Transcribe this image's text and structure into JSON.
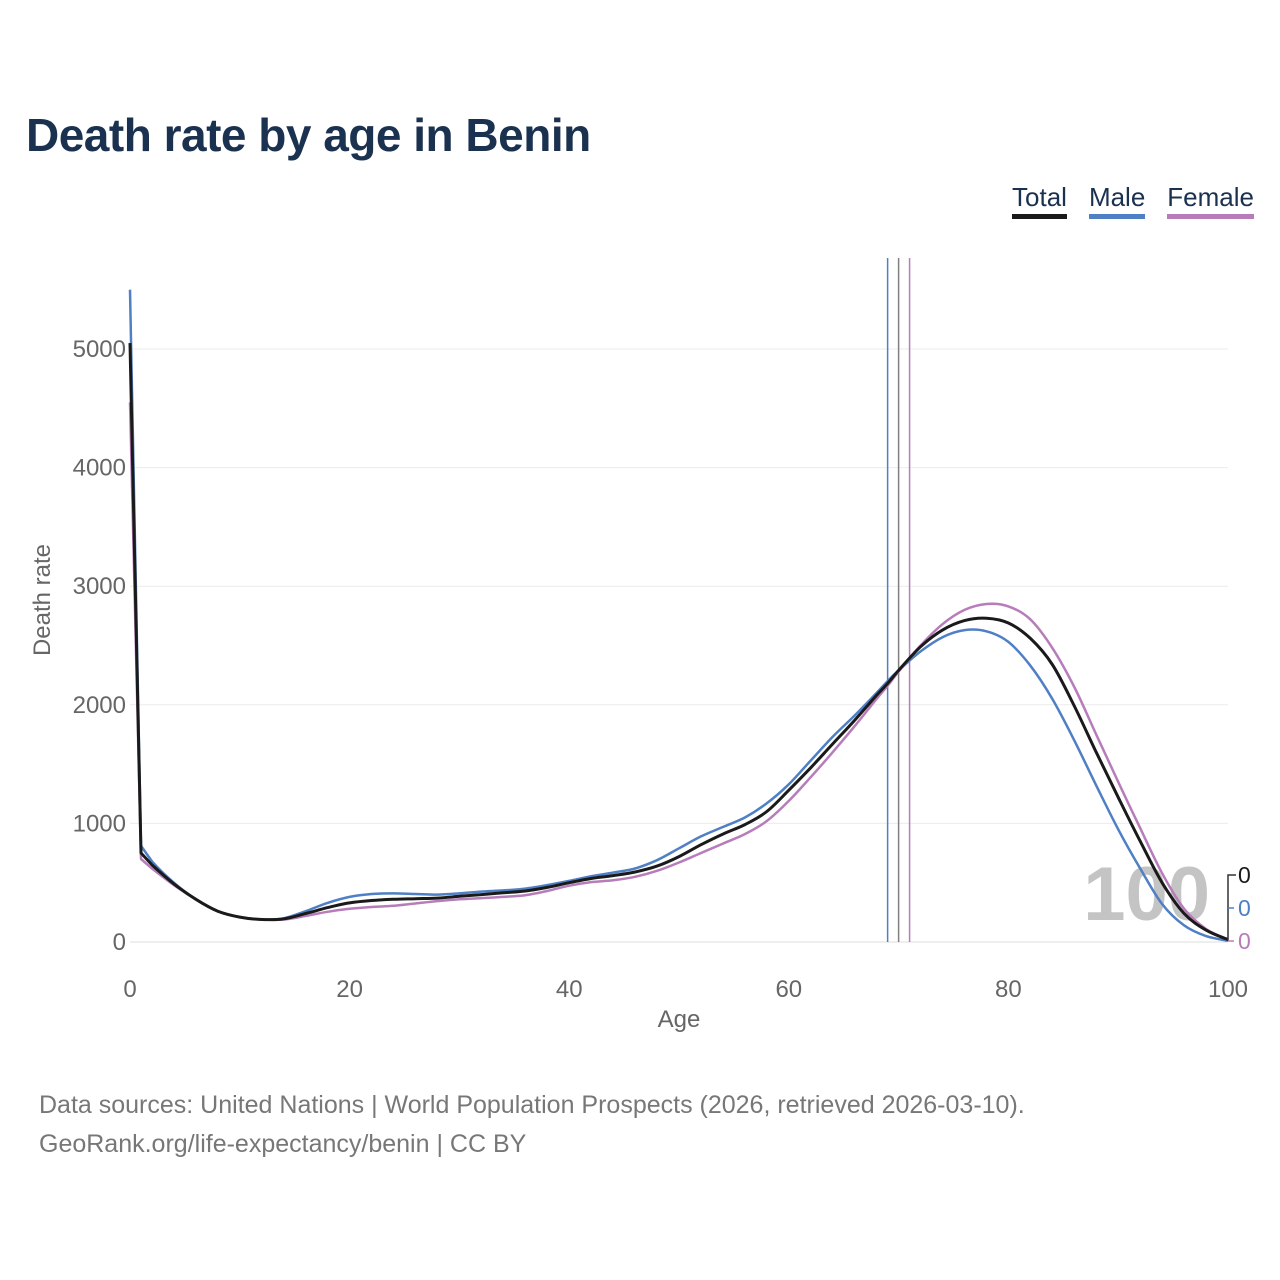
{
  "title": "Death rate by age in Benin",
  "legend": [
    {
      "label": "Total",
      "color": "#1a1a1a"
    },
    {
      "label": "Male",
      "color": "#4f7fc4"
    },
    {
      "label": "Female",
      "color": "#b77dba"
    }
  ],
  "chart_data": {
    "type": "line",
    "title": "Death rate by age in Benin",
    "xlabel": "Age",
    "ylabel": "Death rate",
    "xlim": [
      0,
      100
    ],
    "ylim": [
      0,
      5500
    ],
    "x_ticks": [
      0,
      20,
      40,
      60,
      80,
      100
    ],
    "y_ticks": [
      0,
      1000,
      2000,
      3000,
      4000,
      5000
    ],
    "grid": true,
    "x": [
      0,
      1,
      2,
      4,
      6,
      8,
      10,
      12,
      14,
      16,
      18,
      20,
      22,
      24,
      26,
      28,
      30,
      32,
      34,
      36,
      38,
      40,
      42,
      44,
      46,
      48,
      50,
      52,
      54,
      56,
      58,
      60,
      62,
      64,
      66,
      68,
      69,
      70,
      72,
      74,
      76,
      78,
      80,
      82,
      84,
      86,
      88,
      90,
      92,
      94,
      96,
      98,
      100
    ],
    "series": [
      {
        "name": "Total",
        "color": "#1a1a1a",
        "values": [
          5050,
          750,
          650,
          490,
          360,
          260,
          210,
          190,
          195,
          240,
          290,
          330,
          350,
          360,
          365,
          370,
          385,
          400,
          415,
          430,
          460,
          500,
          535,
          560,
          590,
          640,
          720,
          820,
          910,
          990,
          1100,
          1280,
          1470,
          1670,
          1870,
          2080,
          2180,
          2290,
          2490,
          2630,
          2710,
          2730,
          2690,
          2560,
          2340,
          1990,
          1600,
          1220,
          850,
          500,
          240,
          100,
          20
        ]
      },
      {
        "name": "Male",
        "color": "#4f7fc4",
        "values": [
          5500,
          810,
          680,
          500,
          360,
          260,
          210,
          190,
          200,
          260,
          330,
          380,
          405,
          410,
          405,
          400,
          410,
          425,
          435,
          450,
          480,
          515,
          555,
          585,
          620,
          690,
          790,
          890,
          970,
          1050,
          1170,
          1330,
          1530,
          1730,
          1910,
          2100,
          2200,
          2290,
          2450,
          2570,
          2630,
          2620,
          2530,
          2330,
          2050,
          1700,
          1320,
          950,
          620,
          320,
          140,
          50,
          10
        ]
      },
      {
        "name": "Female",
        "color": "#b77dba",
        "values": [
          4550,
          700,
          620,
          480,
          360,
          260,
          210,
          190,
          190,
          220,
          255,
          280,
          295,
          305,
          325,
          345,
          360,
          370,
          380,
          395,
          430,
          475,
          505,
          520,
          550,
          600,
          670,
          750,
          830,
          910,
          1020,
          1190,
          1390,
          1600,
          1820,
          2050,
          2160,
          2280,
          2500,
          2680,
          2800,
          2850,
          2830,
          2720,
          2480,
          2150,
          1750,
          1350,
          960,
          580,
          280,
          110,
          20
        ]
      }
    ],
    "reference_lines": [
      {
        "name": "Male",
        "x": 69,
        "color": "#4f7fc4"
      },
      {
        "name": "Total",
        "x": 70,
        "color": "#808080"
      },
      {
        "name": "Female",
        "x": 71,
        "color": "#b77dba"
      }
    ],
    "end_labels": [
      {
        "series": "Total",
        "text": "0",
        "color": "#1a1a1a"
      },
      {
        "series": "Male",
        "text": "0",
        "color": "#4f7fc4"
      },
      {
        "series": "Female",
        "text": "0",
        "color": "#b77dba"
      }
    ],
    "watermark": "100"
  },
  "footer": {
    "line1": "Data sources: United Nations | World Population Prospects (2026, retrieved 2026-03-10).",
    "line2": "GeoRank.org/life-expectancy/benin | CC BY"
  }
}
